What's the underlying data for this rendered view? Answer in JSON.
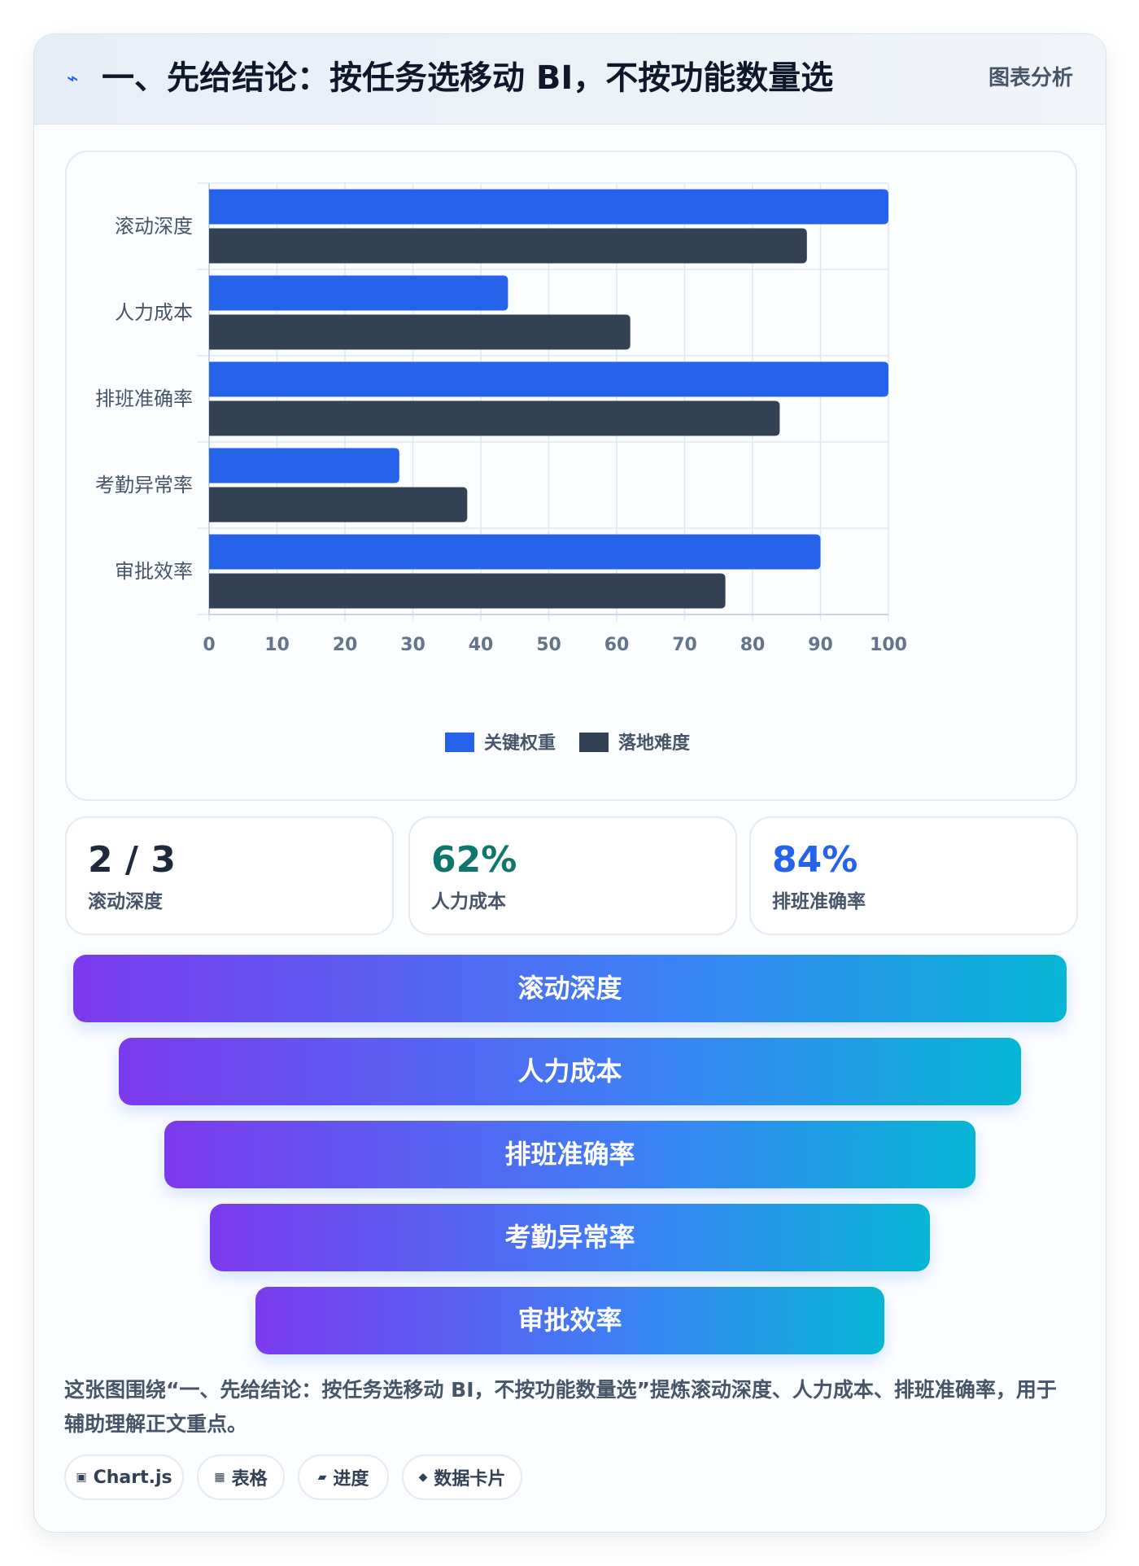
{
  "header": {
    "icon": "lightning-icon",
    "title": "一、先给结论：按任务选移动 BI，不按功能数量选",
    "badge": "图表分析"
  },
  "chart_data": {
    "type": "bar",
    "orientation": "horizontal",
    "categories": [
      "滚动深度",
      "人力成本",
      "排班准确率",
      "考勤异常率",
      "审批效率"
    ],
    "series": [
      {
        "name": "关键权重",
        "color": "#2563eb",
        "values": [
          100,
          44,
          100,
          28,
          90
        ]
      },
      {
        "name": "落地难度",
        "color": "#334155",
        "values": [
          88,
          62,
          84,
          38,
          76
        ]
      }
    ],
    "xlim": [
      0,
      100
    ],
    "xticks": [
      0,
      10,
      20,
      30,
      40,
      50,
      60,
      70,
      80,
      90,
      100
    ],
    "grid": true,
    "legend": "bottom"
  },
  "stats": [
    {
      "value": "2 / 3",
      "label": "滚动深度",
      "color": "#1e293b"
    },
    {
      "value": "62%",
      "label": "人力成本",
      "color": "#0f766e"
    },
    {
      "value": "84%",
      "label": "排班准确率",
      "color": "#2563eb"
    }
  ],
  "funnel": {
    "items": [
      "滚动深度",
      "人力成本",
      "排班准确率",
      "考勤异常率",
      "审批效率"
    ],
    "colors": [
      "#7c3aed",
      "#06b6d4"
    ]
  },
  "summary": "这张图围绕“一、先给结论：按任务选移动 BI，不按功能数量选”提炼滚动深度、人力成本、排班准确率，用于辅助理解正文重点。",
  "tags": [
    {
      "icon": "chart-icon",
      "glyph": "▣",
      "label": "Chart.js"
    },
    {
      "icon": "table-icon",
      "glyph": "▦",
      "label": "表格"
    },
    {
      "icon": "progress-icon",
      "glyph": "▰",
      "label": "进度"
    },
    {
      "icon": "data-card-icon",
      "glyph": "◆",
      "label": "数据卡片"
    }
  ]
}
